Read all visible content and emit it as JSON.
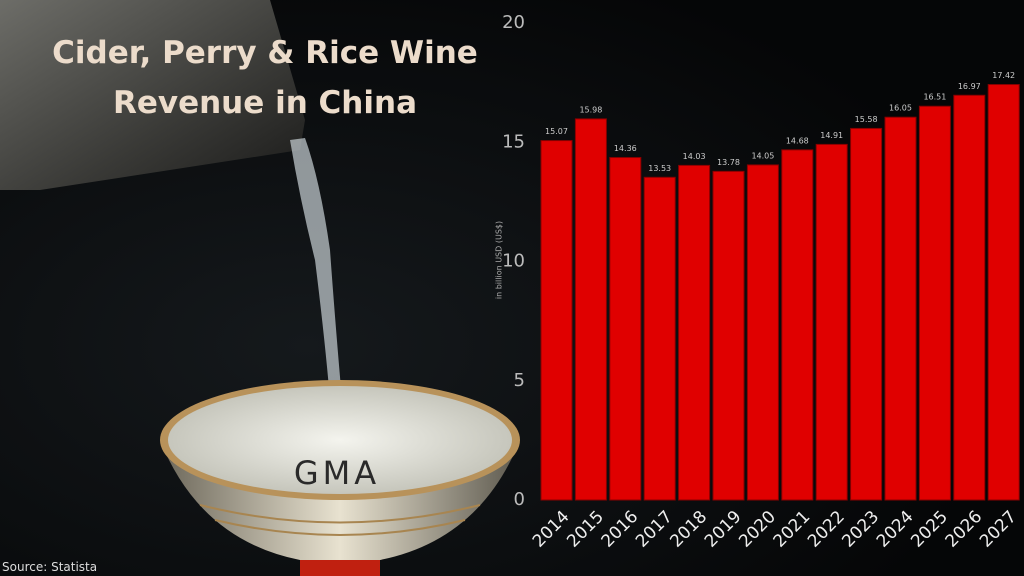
{
  "chart_data": {
    "type": "bar",
    "title": "Cider, Perry & Rice Wine Revenue in China",
    "y_label": "in billion USD (US$)",
    "categories": [
      "2014",
      "2015",
      "2016",
      "2017",
      "2018",
      "2019",
      "2020",
      "2021",
      "2022",
      "2023",
      "2024",
      "2025",
      "2026",
      "2027"
    ],
    "values": [
      15.07,
      15.98,
      14.36,
      13.53,
      14.03,
      13.78,
      14.05,
      14.68,
      14.91,
      15.58,
      16.05,
      16.51,
      16.97,
      17.42
    ],
    "color": "#e00000",
    "ylim": [
      0,
      20
    ],
    "yticks": [
      0,
      5,
      10,
      15,
      20
    ],
    "grid": false
  },
  "logo": "GMA",
  "source": "Source: Statista"
}
